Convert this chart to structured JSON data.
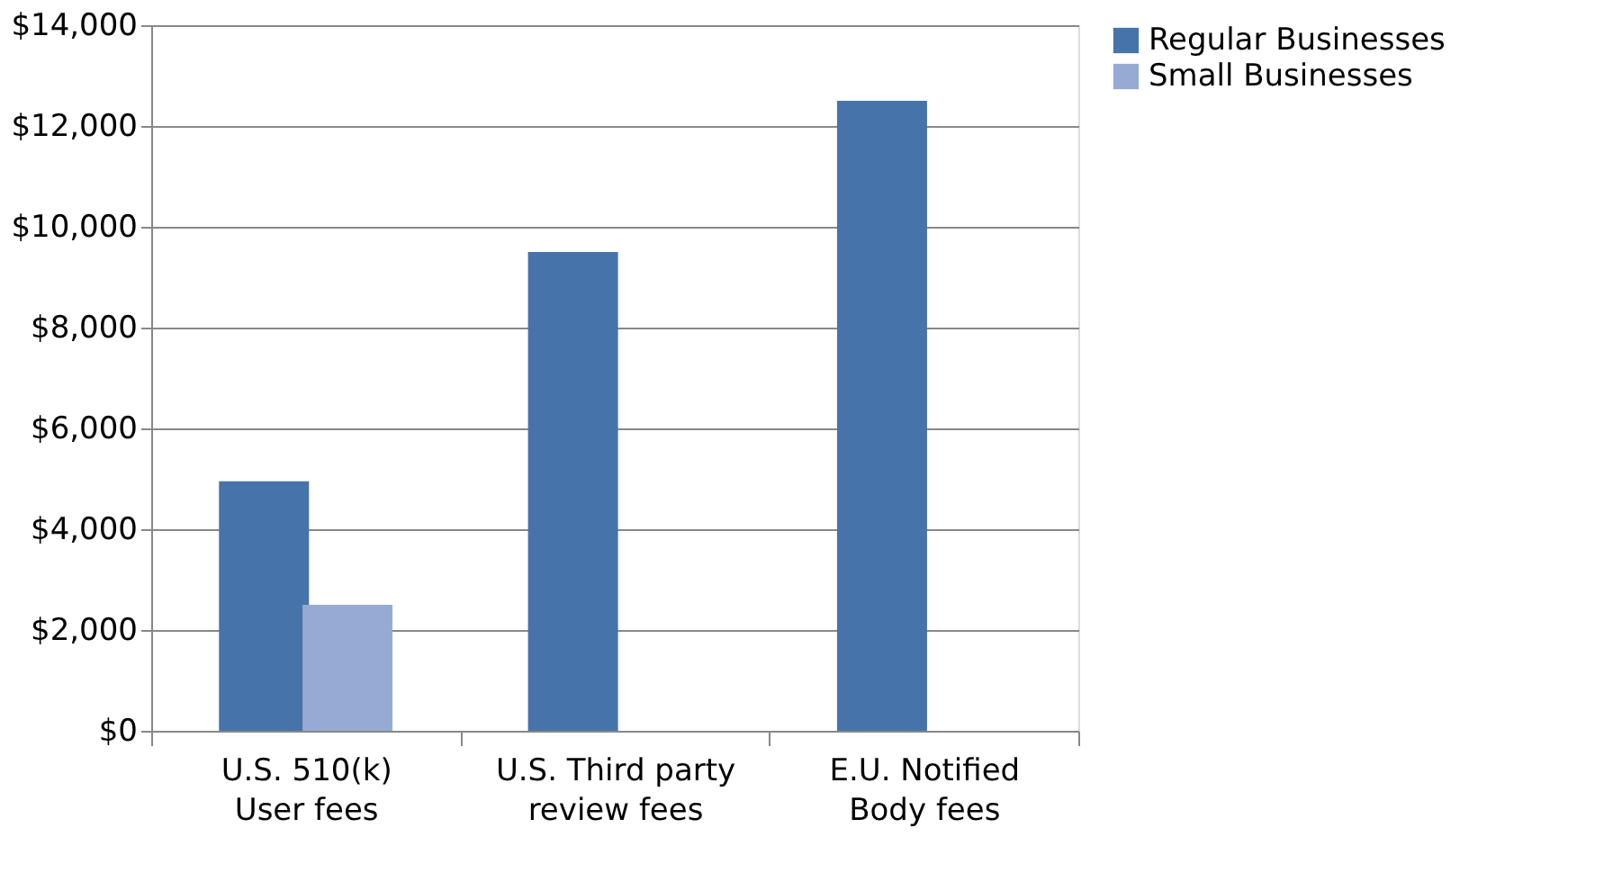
{
  "chart_data": {
    "type": "bar",
    "categories": [
      "U.S. 510(k)\nUser fees",
      "U.S. Third party\nreview fees",
      "E.U. Notified\nBody fees"
    ],
    "series": [
      {
        "name": "Regular Businesses",
        "color": "#4674aa",
        "values": [
          4950,
          9500,
          12500
        ]
      },
      {
        "name": "Small Businesses",
        "color": "#95abd3",
        "values": [
          2500,
          null,
          null
        ]
      }
    ],
    "ylim": [
      0,
      14000
    ],
    "yticks": [
      {
        "value": 0,
        "label": "$0"
      },
      {
        "value": 2000,
        "label": "$2,000"
      },
      {
        "value": 4000,
        "label": "$4,000"
      },
      {
        "value": 6000,
        "label": "$6,000"
      },
      {
        "value": 8000,
        "label": "$8,000"
      },
      {
        "value": 10000,
        "label": "$10,000"
      },
      {
        "value": 12000,
        "label": "$12,000"
      },
      {
        "value": 14000,
        "label": "$14,000"
      }
    ],
    "grid": "y",
    "legend": "right"
  }
}
